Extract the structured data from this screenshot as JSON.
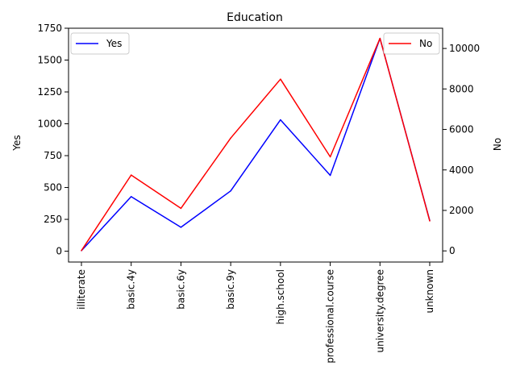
{
  "chart_data": {
    "type": "line",
    "title": "Education",
    "categories": [
      "illiterate",
      "basic.4y",
      "basic.6y",
      "basic.9y",
      "high.school",
      "professional.course",
      "university.degree",
      "unknown"
    ],
    "y_left": {
      "label": "Yes",
      "ylim": [
        -85,
        1750
      ],
      "ticks": [
        0,
        250,
        500,
        750,
        1000,
        1250,
        1500,
        1750
      ]
    },
    "y_right": {
      "label": "No",
      "ylim": [
        -550,
        11000
      ],
      "ticks": [
        0,
        2000,
        4000,
        6000,
        8000,
        10000
      ]
    },
    "series": [
      {
        "name": "Yes",
        "axis": "left",
        "color": "#0000ff",
        "values": [
          4,
          428,
          188,
          473,
          1031,
          595,
          1670,
          241
        ],
        "legend_position": "upper-left"
      },
      {
        "name": "No",
        "axis": "right",
        "color": "#ff0000",
        "values": [
          14,
          3748,
          2104,
          5572,
          8484,
          4648,
          10498,
          1480
        ],
        "legend_position": "upper-right"
      }
    ],
    "grid": false
  }
}
